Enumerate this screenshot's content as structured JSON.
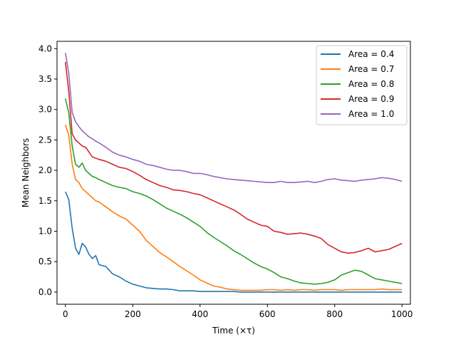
{
  "chart_data": {
    "type": "line",
    "title": "",
    "xlabel": "Time (×τ)",
    "ylabel": "Mean Neighbors",
    "xlim": [
      -25,
      1025
    ],
    "ylim": [
      -0.2,
      4.12
    ],
    "x_ticks": [
      0,
      200,
      400,
      600,
      800,
      1000
    ],
    "y_ticks": [
      0.0,
      0.5,
      1.0,
      1.5,
      2.0,
      2.5,
      3.0,
      3.5,
      4.0
    ],
    "x_tick_labels": [
      "0",
      "200",
      "400",
      "600",
      "800",
      "1000"
    ],
    "y_tick_labels": [
      "0.0",
      "0.5",
      "1.0",
      "1.5",
      "2.0",
      "2.5",
      "3.0",
      "3.5",
      "4.0"
    ],
    "grid": false,
    "legend_position": "top-right",
    "x": [
      0,
      10,
      20,
      30,
      40,
      50,
      60,
      70,
      80,
      90,
      100,
      120,
      140,
      160,
      180,
      200,
      220,
      240,
      260,
      280,
      300,
      320,
      340,
      360,
      380,
      400,
      420,
      440,
      460,
      480,
      500,
      520,
      540,
      560,
      580,
      600,
      620,
      640,
      660,
      680,
      700,
      720,
      740,
      760,
      780,
      800,
      820,
      840,
      860,
      880,
      900,
      920,
      940,
      960,
      980,
      1000
    ],
    "series": [
      {
        "name": "Area = 0.4",
        "color": "#1f77b4",
        "values": [
          1.65,
          1.52,
          1.05,
          0.72,
          0.62,
          0.8,
          0.74,
          0.62,
          0.55,
          0.6,
          0.45,
          0.42,
          0.3,
          0.25,
          0.18,
          0.13,
          0.1,
          0.07,
          0.06,
          0.05,
          0.05,
          0.04,
          0.02,
          0.02,
          0.02,
          0.01,
          0.01,
          0.01,
          0.01,
          0.01,
          0.01,
          0.0,
          0.0,
          0.0,
          0.0,
          0.0,
          0.0,
          0.0,
          0.0,
          0.0,
          0.0,
          0.0,
          0.0,
          0.0,
          0.0,
          0.0,
          0.0,
          0.0,
          0.0,
          0.0,
          0.0,
          0.0,
          0.0,
          0.0,
          0.0,
          0.0
        ]
      },
      {
        "name": "Area = 0.7",
        "color": "#ff7f0e",
        "values": [
          2.75,
          2.58,
          2.1,
          1.85,
          1.8,
          1.7,
          1.65,
          1.6,
          1.55,
          1.5,
          1.48,
          1.4,
          1.32,
          1.25,
          1.2,
          1.1,
          1.0,
          0.85,
          0.75,
          0.65,
          0.58,
          0.5,
          0.42,
          0.35,
          0.28,
          0.2,
          0.15,
          0.1,
          0.08,
          0.05,
          0.04,
          0.03,
          0.03,
          0.03,
          0.03,
          0.04,
          0.04,
          0.03,
          0.04,
          0.03,
          0.04,
          0.04,
          0.03,
          0.04,
          0.04,
          0.04,
          0.03,
          0.04,
          0.04,
          0.04,
          0.04,
          0.04,
          0.05,
          0.04,
          0.04,
          0.04
        ]
      },
      {
        "name": "Area = 0.8",
        "color": "#2ca02c",
        "values": [
          3.18,
          2.95,
          2.4,
          2.1,
          2.05,
          2.12,
          2.0,
          1.95,
          1.9,
          1.88,
          1.85,
          1.8,
          1.75,
          1.72,
          1.7,
          1.65,
          1.62,
          1.58,
          1.52,
          1.45,
          1.38,
          1.33,
          1.28,
          1.22,
          1.15,
          1.08,
          0.98,
          0.9,
          0.83,
          0.76,
          0.68,
          0.62,
          0.55,
          0.48,
          0.42,
          0.38,
          0.32,
          0.25,
          0.22,
          0.18,
          0.15,
          0.14,
          0.13,
          0.14,
          0.16,
          0.2,
          0.28,
          0.32,
          0.36,
          0.34,
          0.28,
          0.22,
          0.2,
          0.18,
          0.16,
          0.14
        ]
      },
      {
        "name": "Area = 0.9",
        "color": "#d62728",
        "values": [
          3.78,
          3.3,
          2.6,
          2.5,
          2.45,
          2.4,
          2.38,
          2.3,
          2.22,
          2.2,
          2.18,
          2.15,
          2.1,
          2.05,
          2.03,
          1.98,
          1.92,
          1.85,
          1.8,
          1.75,
          1.72,
          1.68,
          1.67,
          1.65,
          1.62,
          1.6,
          1.55,
          1.5,
          1.45,
          1.4,
          1.35,
          1.28,
          1.2,
          1.15,
          1.1,
          1.08,
          1.0,
          0.98,
          0.95,
          0.96,
          0.97,
          0.95,
          0.92,
          0.88,
          0.78,
          0.72,
          0.66,
          0.64,
          0.65,
          0.68,
          0.72,
          0.66,
          0.68,
          0.7,
          0.75,
          0.8
        ]
      },
      {
        "name": "Area = 1.0",
        "color": "#9467bd",
        "values": [
          3.93,
          3.6,
          2.95,
          2.8,
          2.72,
          2.65,
          2.6,
          2.55,
          2.52,
          2.48,
          2.45,
          2.38,
          2.3,
          2.25,
          2.22,
          2.18,
          2.15,
          2.1,
          2.08,
          2.05,
          2.02,
          2.0,
          2.0,
          1.98,
          1.95,
          1.95,
          1.93,
          1.9,
          1.88,
          1.86,
          1.85,
          1.84,
          1.83,
          1.82,
          1.81,
          1.8,
          1.8,
          1.82,
          1.8,
          1.8,
          1.81,
          1.82,
          1.8,
          1.82,
          1.85,
          1.86,
          1.84,
          1.83,
          1.82,
          1.84,
          1.85,
          1.86,
          1.88,
          1.87,
          1.85,
          1.82
        ]
      }
    ]
  }
}
